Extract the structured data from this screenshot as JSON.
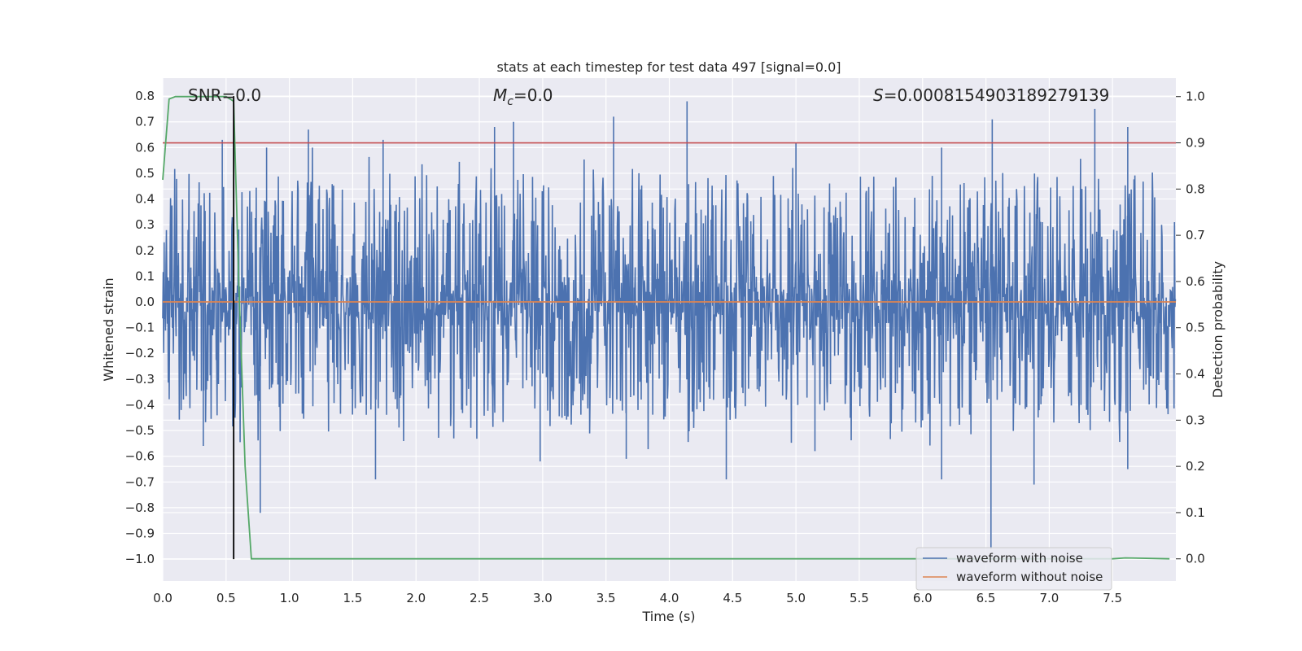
{
  "chart_data": {
    "type": "line",
    "title": "stats at each timestep for test data 497 [signal=0.0]",
    "xlabel": "Time (s)",
    "ylabel": "Whitened strain",
    "y2label": "Detection probability",
    "xlim": [
      0.0,
      8.0
    ],
    "ylim": [
      -1.085,
      0.87
    ],
    "y2lim": [
      -0.048,
      1.04
    ],
    "x_ticks": [
      0.0,
      0.5,
      1.0,
      1.5,
      2.0,
      2.5,
      3.0,
      3.5,
      4.0,
      4.5,
      5.0,
      5.5,
      6.0,
      6.5,
      7.0,
      7.5
    ],
    "x_tick_labels": [
      "0.0",
      "0.5",
      "1.0",
      "1.5",
      "2.0",
      "2.5",
      "3.0",
      "3.5",
      "4.0",
      "4.5",
      "5.0",
      "5.5",
      "6.0",
      "6.5",
      "7.0",
      "7.5"
    ],
    "y_ticks": [
      0.8,
      0.7,
      0.6,
      0.5,
      0.4,
      0.3,
      0.2,
      0.1,
      0.0,
      -0.1,
      -0.2,
      -0.3,
      -0.4,
      -0.5,
      -0.6,
      -0.7,
      -0.8,
      -0.9,
      -1.0
    ],
    "y_tick_labels": [
      "0.8",
      "0.7",
      "0.6",
      "0.5",
      "0.4",
      "0.3",
      "0.2",
      "0.1",
      "0.0",
      "−0.1",
      "−0.2",
      "−0.3",
      "−0.4",
      "−0.5",
      "−0.6",
      "−0.7",
      "−0.8",
      "−0.9",
      "−1.0"
    ],
    "y2_ticks": [
      1.0,
      0.9,
      0.8,
      0.7,
      0.6,
      0.5,
      0.4,
      0.3,
      0.2,
      0.1,
      0.0
    ],
    "y2_tick_labels": [
      "1.0",
      "0.9",
      "0.8",
      "0.7",
      "0.6",
      "0.5",
      "0.4",
      "0.3",
      "0.2",
      "0.1",
      "0.0"
    ],
    "grid": true,
    "annotations": {
      "snr": "SNR=0.0",
      "mc_symbol": "M",
      "mc_sub": "c",
      "mc_value": "=0.0",
      "s_symbol": "S",
      "s_value": "=0.000815490318927913​9"
    },
    "series": [
      {
        "name": "waveform with noise",
        "axis": "left",
        "color": "#4c72b0",
        "style": "dense noise filling approx. -0.45 to 0.45 whitened strain across 0–8 s",
        "peaks": [
          [
            0.47,
            0.63
          ],
          [
            0.82,
            0.6
          ],
          [
            1.15,
            0.67
          ],
          [
            1.74,
            0.63
          ],
          [
            2.62,
            0.68
          ],
          [
            2.77,
            0.7
          ],
          [
            3.56,
            0.72
          ],
          [
            4.14,
            0.78
          ],
          [
            5.0,
            0.62
          ],
          [
            6.15,
            0.6
          ],
          [
            6.55,
            0.71
          ],
          [
            7.36,
            0.75
          ],
          [
            7.62,
            0.68
          ]
        ],
        "troughs": [
          [
            0.32,
            -0.56
          ],
          [
            0.77,
            -0.82
          ],
          [
            1.68,
            -0.69
          ],
          [
            2.98,
            -0.62
          ],
          [
            3.66,
            -0.61
          ],
          [
            4.45,
            -0.69
          ],
          [
            5.15,
            -0.58
          ],
          [
            6.15,
            -0.69
          ],
          [
            6.54,
            -0.96
          ],
          [
            6.88,
            -0.71
          ],
          [
            7.62,
            -0.65
          ]
        ]
      },
      {
        "name": "waveform without noise",
        "axis": "left",
        "color": "#dd8452",
        "x": [
          0.0,
          8.0
        ],
        "values": [
          0.0,
          0.0
        ]
      },
      {
        "name": "detection probability",
        "axis": "right",
        "color": "#55a868",
        "x": [
          0.0,
          0.05,
          0.1,
          0.5,
          0.56,
          0.6,
          0.65,
          0.7,
          7.5,
          7.6,
          7.95
        ],
        "values": [
          0.82,
          0.995,
          1.0,
          1.0,
          0.99,
          0.6,
          0.2,
          0.0,
          0.0,
          0.002,
          0.0
        ]
      }
    ],
    "threshold": {
      "axis": "right",
      "value": 0.9,
      "color": "#c44e52"
    },
    "marker_line": {
      "x": 0.56,
      "y_from": -1.0,
      "y_to": 0.8,
      "color": "#000000"
    },
    "legend": {
      "position": "lower-right",
      "items": [
        {
          "label": "waveform with noise",
          "color": "#4c72b0"
        },
        {
          "label": "waveform without noise",
          "color": "#dd8452"
        }
      ]
    },
    "colors": {
      "background": "#eaeaf2",
      "grid": "#ffffff"
    }
  }
}
